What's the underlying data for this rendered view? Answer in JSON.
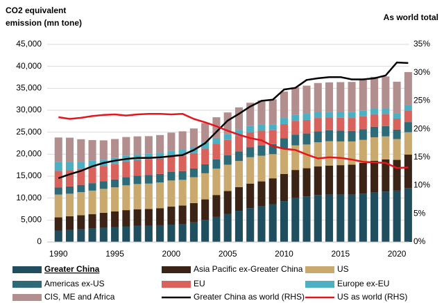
{
  "chart_data": {
    "type": "bar",
    "stacked": true,
    "y_label": [
      "CO2 equivalent",
      "emission (mn tone)"
    ],
    "y2_label": "As world total",
    "x": [
      1990,
      1991,
      1992,
      1993,
      1994,
      1995,
      1996,
      1997,
      1998,
      1999,
      2000,
      2001,
      2002,
      2003,
      2004,
      2005,
      2006,
      2007,
      2008,
      2009,
      2010,
      2011,
      2012,
      2013,
      2014,
      2015,
      2016,
      2017,
      2018,
      2019,
      2020,
      2021
    ],
    "xlim": [
      1989,
      2021.1
    ],
    "xticks": [
      1990,
      1995,
      2000,
      2005,
      2010,
      2015,
      2020
    ],
    "ylim": [
      0,
      45000
    ],
    "yticks": [
      0,
      {
        "value": 5000,
        "label": "5,000"
      },
      {
        "value": 10000,
        "label": "10,000"
      },
      {
        "value": 15000,
        "label": "15,000"
      },
      {
        "value": 20000,
        "label": "20,000"
      },
      {
        "value": 25000,
        "label": "25,000"
      },
      {
        "value": 30000,
        "label": "30,000"
      },
      {
        "value": 35000,
        "label": "35,000"
      },
      {
        "value": 40000,
        "label": "40,000"
      },
      {
        "value": 45000,
        "label": "45,000"
      }
    ],
    "y2lim": [
      0,
      35
    ],
    "y2ticks": [
      {
        "value": 0,
        "label": "0%"
      },
      {
        "value": 5,
        "label": "5%"
      },
      {
        "value": 10,
        "label": "10%"
      },
      {
        "value": 15,
        "label": "15%"
      },
      {
        "value": 20,
        "label": "20%"
      },
      {
        "value": 25,
        "label": "25%"
      },
      {
        "value": 30,
        "label": "30%"
      },
      {
        "value": 35,
        "label": "35%"
      }
    ],
    "grid": true,
    "series": [
      {
        "name": "Greater China",
        "type": "bar",
        "color": "#1f4e5f",
        "values": [
          2600,
          2750,
          2900,
          3050,
          3250,
          3400,
          3550,
          3650,
          3700,
          3800,
          3950,
          4100,
          4450,
          5000,
          5700,
          6400,
          7100,
          7700,
          8100,
          8600,
          9300,
          10100,
          10400,
          10700,
          10800,
          10800,
          10800,
          11000,
          11300,
          11500,
          11700,
          12300
        ]
      },
      {
        "name": "Asia Pacific ex-Greater China",
        "type": "bar",
        "color": "#3b2416",
        "values": [
          3000,
          3100,
          3200,
          3300,
          3400,
          3550,
          3700,
          3800,
          3800,
          3900,
          4100,
          4200,
          4400,
          4700,
          5000,
          5200,
          5400,
          5600,
          5700,
          5900,
          6200,
          6300,
          6400,
          6500,
          6600,
          6700,
          6800,
          7000,
          7200,
          7300,
          7000,
          7600
        ]
      },
      {
        "name": "US",
        "type": "bar",
        "color": "#c9a96e",
        "values": [
          5200,
          5150,
          5250,
          5350,
          5450,
          5500,
          5650,
          5750,
          5800,
          5850,
          5950,
          5850,
          5900,
          5950,
          6000,
          6000,
          5950,
          6000,
          5850,
          5500,
          5700,
          5600,
          5400,
          5500,
          5550,
          5400,
          5300,
          5250,
          5350,
          5250,
          4750,
          5100
        ]
      },
      {
        "name": "Americas ex-US",
        "type": "bar",
        "color": "#2c6b77",
        "values": [
          1600,
          1650,
          1650,
          1700,
          1750,
          1800,
          1850,
          1900,
          1950,
          1950,
          2000,
          2000,
          2000,
          2050,
          2100,
          2150,
          2200,
          2250,
          2300,
          2300,
          2400,
          2450,
          2500,
          2500,
          2500,
          2450,
          2400,
          2400,
          2400,
          2350,
          2150,
          2300
        ]
      },
      {
        "name": "EU",
        "type": "bar",
        "color": "#d9625c",
        "values": [
          3800,
          3700,
          3600,
          3550,
          3500,
          3550,
          3600,
          3550,
          3550,
          3500,
          3500,
          3550,
          3500,
          3550,
          3550,
          3500,
          3500,
          3450,
          3400,
          3150,
          3250,
          3150,
          3100,
          3050,
          2900,
          2950,
          2950,
          2950,
          2850,
          2750,
          2500,
          2650
        ]
      },
      {
        "name": "Europe ex-EU",
        "type": "bar",
        "color": "#4cb0c2",
        "values": [
          2000,
          1900,
          1700,
          1550,
          1400,
          1350,
          1350,
          1300,
          1300,
          1300,
          1300,
          1300,
          1300,
          1350,
          1350,
          1350,
          1400,
          1400,
          1400,
          1350,
          1400,
          1400,
          1400,
          1350,
          1300,
          1300,
          1300,
          1300,
          1300,
          1250,
          1200,
          1250
        ]
      },
      {
        "name": "CIS, ME and Africa",
        "type": "bar",
        "color": "#b38e8e",
        "values": [
          5600,
          5500,
          5100,
          4700,
          4400,
          4300,
          4200,
          4100,
          4000,
          4050,
          4100,
          4200,
          4300,
          4500,
          4700,
          4900,
          5100,
          5300,
          5500,
          5700,
          6000,
          6200,
          6400,
          6600,
          6700,
          6800,
          6900,
          7000,
          7200,
          7300,
          7200,
          7500
        ]
      },
      {
        "name": "Greater China as world (RHS)",
        "type": "line",
        "axis": "y2",
        "color": "#000000",
        "values": [
          11.3,
          12,
          12.6,
          13.4,
          14,
          14.4,
          14.7,
          14.9,
          14.9,
          15,
          15.2,
          15.4,
          16.3,
          17.5,
          19.5,
          21.5,
          22.7,
          24,
          25,
          25.2,
          27,
          27.3,
          28.7,
          29,
          29.2,
          29.2,
          28.8,
          28.8,
          29,
          29.5,
          31.8,
          31.7
        ]
      },
      {
        "name": "US as world (RHS)",
        "type": "line",
        "axis": "y2",
        "color": "#e8141b",
        "values": [
          22.1,
          21.8,
          22,
          22.3,
          22.5,
          22.6,
          22.4,
          22.6,
          22.7,
          22.7,
          22.6,
          22.7,
          21.8,
          21.2,
          20.5,
          19.7,
          19,
          18.4,
          18,
          17,
          16.5,
          16.3,
          15.5,
          14.8,
          15,
          14.9,
          14.6,
          14.2,
          14.1,
          14,
          13.1,
          13.2
        ]
      }
    ]
  }
}
